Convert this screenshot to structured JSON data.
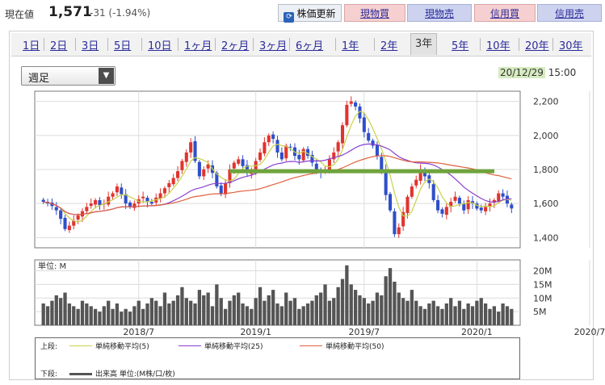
{
  "header": {
    "price_label": "現在値",
    "price_value": "1,571",
    "price_change": "-31 (-1.94%)",
    "buttons": {
      "update": "株価更新",
      "genbutsu_buy": "現物買",
      "genbutsu_sell": "現物売",
      "shinyo_buy": "信用買",
      "shinyo_sell": "信用売"
    }
  },
  "tabs": [
    {
      "label": "1日"
    },
    {
      "label": "2日"
    },
    {
      "label": "3日"
    },
    {
      "label": "5日"
    },
    {
      "label": "10日"
    },
    {
      "label": "1ヶ月"
    },
    {
      "label": "2ヶ月"
    },
    {
      "label": "3ヶ月"
    },
    {
      "label": "6ヶ月"
    },
    {
      "label": "1年"
    },
    {
      "label": "2年"
    },
    {
      "label": "3年",
      "active": true
    },
    {
      "label": "5年"
    },
    {
      "label": "10年"
    },
    {
      "label": "20年"
    },
    {
      "label": "30年"
    }
  ],
  "period_select": {
    "value": "週足"
  },
  "date_stamp": {
    "date": "20/12/29",
    "time": "15:00"
  },
  "legend": {
    "upper_label": "上段:",
    "lower_label": "下段:",
    "ma5": "単純移動平均(5)",
    "ma25": "単純移動平均(25)",
    "ma50": "単純移動平均(50)",
    "volume": "出来高 単位:(M株/口/枚)",
    "colors": {
      "ma5": "#c8d24a",
      "ma25": "#8a3fd1",
      "ma50": "#e0603c",
      "volume": "#555555"
    }
  },
  "chart_data": {
    "type": "candlestick",
    "price_axis": {
      "ticks": [
        1400,
        1600,
        1800,
        2000,
        2200
      ],
      "labels": [
        "1,400",
        "1,600",
        "1,800",
        "2,000",
        "2,200"
      ],
      "range": [
        1340,
        2260
      ]
    },
    "volume_axis": {
      "unit_label": "単位: M",
      "ticks": [
        5,
        10,
        15,
        20
      ],
      "labels": [
        "5M",
        "10M",
        "15M",
        "20M"
      ],
      "range": [
        0,
        24
      ]
    },
    "x_labels": [
      "2018/7",
      "2019/1",
      "2019/7",
      "2020/1",
      "2020/7"
    ],
    "x_label_week": [
      22,
      49,
      74,
      100,
      126
    ],
    "horizontal_line": {
      "value": 1790,
      "color": "#6fa33c"
    },
    "up_color": "#e0342f",
    "down_color": "#2f4fc9",
    "close": [
      1610,
      1600,
      1585,
      1560,
      1510,
      1450,
      1470,
      1500,
      1530,
      1555,
      1580,
      1600,
      1620,
      1590,
      1600,
      1640,
      1660,
      1700,
      1655,
      1600,
      1580,
      1600,
      1625,
      1640,
      1610,
      1600,
      1635,
      1660,
      1690,
      1720,
      1750,
      1790,
      1850,
      1900,
      1960,
      1850,
      1760,
      1800,
      1830,
      1780,
      1700,
      1660,
      1720,
      1800,
      1840,
      1860,
      1820,
      1780,
      1800,
      1850,
      1900,
      1960,
      2000,
      1980,
      1900,
      1860,
      1940,
      1930,
      1880,
      1860,
      1920,
      1880,
      1840,
      1800,
      1780,
      1800,
      1860,
      1900,
      1960,
      2060,
      2180,
      2200,
      2170,
      2100,
      2020,
      1970,
      1940,
      1880,
      1800,
      1650,
      1560,
      1420,
      1460,
      1550,
      1640,
      1700,
      1740,
      1800,
      1760,
      1720,
      1620,
      1560,
      1540,
      1580,
      1610,
      1640,
      1600,
      1560,
      1620,
      1600,
      1570,
      1560,
      1580,
      1600,
      1620,
      1660,
      1640,
      1600,
      1571
    ],
    "volume": [
      8,
      7,
      9,
      11,
      10,
      12,
      8,
      7,
      6,
      9,
      8,
      7,
      6,
      5,
      7,
      9,
      6,
      8,
      5,
      6,
      5,
      7,
      9,
      6,
      8,
      10,
      9,
      7,
      12,
      8,
      9,
      11,
      14,
      10,
      9,
      8,
      13,
      11,
      12,
      7,
      15,
      10,
      6,
      9,
      11,
      12,
      8,
      7,
      6,
      10,
      14,
      9,
      11,
      13,
      8,
      7,
      12,
      9,
      10,
      6,
      7,
      8,
      9,
      11,
      12,
      15,
      9,
      10,
      14,
      17,
      22,
      15,
      13,
      11,
      10,
      8,
      9,
      12,
      11,
      18,
      21,
      16,
      12,
      10,
      9,
      13,
      9,
      7,
      6,
      8,
      9,
      7,
      6,
      8,
      10,
      7,
      9,
      6,
      8,
      7,
      9,
      10,
      8,
      6,
      7,
      5,
      8,
      7,
      6
    ]
  }
}
